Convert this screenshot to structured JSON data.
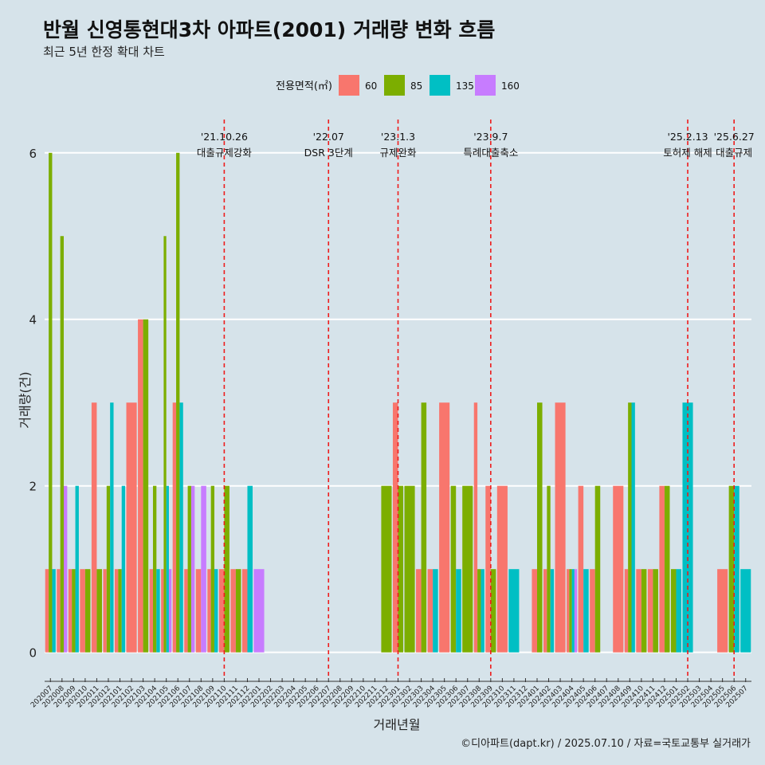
{
  "title": "반월 신영통현대3차 아파트(2001) 거래량 변화 흐름",
  "subtitle": "최근 5년 한정 확대 차트",
  "caption": "©디아파트(dapt.kr) / 2025.07.10 / 자료=국토교통부 실거래가",
  "chart_data": {
    "type": "bar",
    "xlabel": "거래년월",
    "ylabel": "거래량(건)",
    "ylim": [
      -0.3,
      6.4
    ],
    "yticks": [
      0,
      2,
      4,
      6
    ],
    "grid": true,
    "legend": {
      "title": "전용면적(㎡)",
      "position": "top"
    },
    "categories": [
      "202007",
      "202008",
      "202009",
      "202010",
      "202011",
      "202012",
      "202101",
      "202102",
      "202103",
      "202104",
      "202105",
      "202106",
      "202107",
      "202108",
      "202109",
      "202110",
      "202111",
      "202112",
      "202201",
      "202202",
      "202203",
      "202204",
      "202205",
      "202206",
      "202207",
      "202208",
      "202209",
      "202210",
      "202211",
      "202212",
      "202301",
      "202302",
      "202303",
      "202304",
      "202305",
      "202306",
      "202307",
      "202308",
      "202309",
      "202310",
      "202311",
      "202312",
      "202401",
      "202402",
      "202403",
      "202404",
      "202405",
      "202406",
      "202407",
      "202408",
      "202409",
      "202410",
      "202411",
      "202412",
      "202501",
      "202502",
      "202503",
      "202504",
      "202505",
      "202506",
      "202507"
    ],
    "series": [
      {
        "name": "60",
        "color": "#F8766D",
        "values": [
          1,
          1,
          1,
          1,
          3,
          1,
          1,
          3,
          4,
          1,
          1,
          3,
          1,
          1,
          1,
          1,
          1,
          1,
          0,
          0,
          0,
          0,
          0,
          0,
          0,
          0,
          0,
          0,
          0,
          0,
          3,
          0,
          1,
          1,
          3,
          0,
          0,
          3,
          2,
          2,
          0,
          0,
          1,
          1,
          3,
          1,
          2,
          1,
          0,
          2,
          1,
          1,
          1,
          2,
          0,
          0,
          0,
          0,
          1,
          0,
          0
        ]
      },
      {
        "name": "85",
        "color": "#7CAE00",
        "values": [
          6,
          5,
          1,
          1,
          1,
          2,
          1,
          0,
          4,
          2,
          5,
          6,
          2,
          0,
          2,
          2,
          1,
          0,
          0,
          0,
          0,
          0,
          0,
          0,
          0,
          0,
          0,
          0,
          0,
          2,
          2,
          2,
          3,
          0,
          0,
          2,
          2,
          1,
          1,
          0,
          0,
          0,
          3,
          2,
          0,
          1,
          0,
          2,
          0,
          0,
          3,
          1,
          1,
          2,
          1,
          0,
          0,
          0,
          0,
          2,
          0
        ]
      },
      {
        "name": "135",
        "color": "#00BFC4",
        "values": [
          1,
          0,
          2,
          0,
          0,
          3,
          2,
          0,
          0,
          1,
          2,
          3,
          0,
          0,
          1,
          0,
          0,
          2,
          0,
          0,
          0,
          0,
          0,
          0,
          0,
          0,
          0,
          0,
          0,
          0,
          0,
          0,
          0,
          1,
          0,
          1,
          0,
          1,
          0,
          0,
          1,
          0,
          0,
          1,
          0,
          1,
          1,
          0,
          0,
          0,
          3,
          0,
          0,
          0,
          1,
          3,
          0,
          0,
          0,
          2,
          1
        ]
      },
      {
        "name": "160",
        "color": "#C77CFF",
        "values": [
          0,
          2,
          0,
          0,
          0,
          0,
          0,
          0,
          0,
          0,
          1,
          0,
          2,
          2,
          0,
          0,
          0,
          0,
          1,
          0,
          0,
          0,
          0,
          0,
          0,
          0,
          0,
          0,
          0,
          0,
          0,
          0,
          0,
          0,
          0,
          0,
          0,
          0,
          0,
          0,
          0,
          0,
          0,
          0,
          0,
          1,
          0,
          0,
          0,
          0,
          0,
          0,
          0,
          0,
          0,
          0,
          0,
          0,
          0,
          0,
          0
        ]
      }
    ],
    "annotations": [
      {
        "date": "'21.10.26",
        "text": "대출규제강화",
        "at": "202110"
      },
      {
        "date": "'22.07",
        "text": "DSR 3단계",
        "at": "202207"
      },
      {
        "date": "'23.1.3",
        "text": "규제완화",
        "at": "202301"
      },
      {
        "date": "'23.9.7",
        "text": "특례대출축소",
        "at": "202309"
      },
      {
        "date": "'25.2.13",
        "text": "토허제 해제",
        "at": "202502"
      },
      {
        "date": "'25.6.27",
        "text": "대출규제",
        "at": "202506"
      }
    ]
  }
}
